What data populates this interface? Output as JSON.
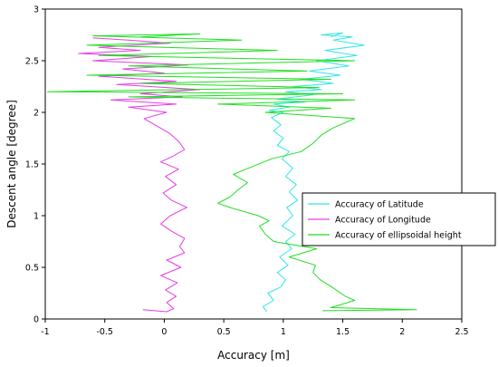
{
  "chart_data": {
    "type": "line",
    "xlabel": "Accuracy [m]",
    "ylabel": "Descent angle [degree]",
    "xlim": [
      -1,
      2.5
    ],
    "ylim": [
      0,
      3
    ],
    "xticks": [
      -1,
      -0.5,
      0,
      0.5,
      1,
      1.5,
      2,
      2.5
    ],
    "xtick_labels": [
      "-1",
      "-0.5",
      "0",
      "0.5",
      "1",
      "1.5",
      "2",
      "2.5"
    ],
    "yticks": [
      0,
      0.5,
      1,
      1.5,
      2,
      2.5,
      3
    ],
    "ytick_labels": [
      "0",
      "0.5",
      "1",
      "1.5",
      "2",
      "2.5",
      "3"
    ],
    "grid": false,
    "legend_position": "center-right",
    "series": [
      {
        "name": "Accuracy of Latitude",
        "color": "#33e6e6",
        "points": [
          [
            0.86,
            0.07
          ],
          [
            0.83,
            0.12
          ],
          [
            0.92,
            0.18
          ],
          [
            0.87,
            0.25
          ],
          [
            0.98,
            0.31
          ],
          [
            1.02,
            0.38
          ],
          [
            0.95,
            0.45
          ],
          [
            1.04,
            0.52
          ],
          [
            0.97,
            0.6
          ],
          [
            1.07,
            0.68
          ],
          [
            1.02,
            0.75
          ],
          [
            1.1,
            0.82
          ],
          [
            0.99,
            0.9
          ],
          [
            1.08,
            1.0
          ],
          [
            1.03,
            1.08
          ],
          [
            1.12,
            1.15
          ],
          [
            1.05,
            1.23
          ],
          [
            1.11,
            1.3
          ],
          [
            1.02,
            1.38
          ],
          [
            1.08,
            1.46
          ],
          [
            0.99,
            1.55
          ],
          [
            1.05,
            1.62
          ],
          [
            0.95,
            1.68
          ],
          [
            1.0,
            1.75
          ],
          [
            0.92,
            1.82
          ],
          [
            0.98,
            1.88
          ],
          [
            0.9,
            1.95
          ],
          [
            1.0,
            2.0
          ],
          [
            0.88,
            2.02
          ],
          [
            1.05,
            2.05
          ],
          [
            0.92,
            2.08
          ],
          [
            1.18,
            2.1
          ],
          [
            0.95,
            2.13
          ],
          [
            1.25,
            2.17
          ],
          [
            1.02,
            2.2
          ],
          [
            1.32,
            2.22
          ],
          [
            1.08,
            2.25
          ],
          [
            1.42,
            2.28
          ],
          [
            1.15,
            2.32
          ],
          [
            1.48,
            2.36
          ],
          [
            1.22,
            2.4
          ],
          [
            1.55,
            2.45
          ],
          [
            1.28,
            2.5
          ],
          [
            1.62,
            2.55
          ],
          [
            1.35,
            2.6
          ],
          [
            1.68,
            2.65
          ],
          [
            1.42,
            2.7
          ],
          [
            1.58,
            2.73
          ],
          [
            1.32,
            2.75
          ],
          [
            1.5,
            2.77
          ],
          [
            1.4,
            2.73
          ]
        ]
      },
      {
        "name": "Accuracy of Longitude",
        "color": "#e63ce6",
        "points": [
          [
            -0.18,
            0.09
          ],
          [
            0.02,
            0.07
          ],
          [
            0.08,
            0.1
          ],
          [
            0.02,
            0.16
          ],
          [
            0.1,
            0.22
          ],
          [
            0.01,
            0.28
          ],
          [
            0.11,
            0.35
          ],
          [
            -0.03,
            0.42
          ],
          [
            0.14,
            0.5
          ],
          [
            0.02,
            0.57
          ],
          [
            0.17,
            0.64
          ],
          [
            0.13,
            0.7
          ],
          [
            0.17,
            0.78
          ],
          [
            0.06,
            0.85
          ],
          [
            -0.03,
            0.92
          ],
          [
            0.05,
            1.0
          ],
          [
            0.19,
            1.08
          ],
          [
            0.06,
            1.15
          ],
          [
            -0.01,
            1.22
          ],
          [
            0.1,
            1.3
          ],
          [
            0.01,
            1.38
          ],
          [
            0.12,
            1.45
          ],
          [
            -0.03,
            1.52
          ],
          [
            0.08,
            1.58
          ],
          [
            0.17,
            1.64
          ],
          [
            0.12,
            1.72
          ],
          [
            0.04,
            1.8
          ],
          [
            -0.08,
            1.88
          ],
          [
            -0.17,
            1.94
          ],
          [
            0.02,
            2.0
          ],
          [
            -0.3,
            2.05
          ],
          [
            0.1,
            2.08
          ],
          [
            -0.45,
            2.12
          ],
          [
            0.15,
            2.15
          ],
          [
            -0.2,
            2.18
          ],
          [
            0.3,
            2.22
          ],
          [
            -0.4,
            2.27
          ],
          [
            0.1,
            2.3
          ],
          [
            -0.55,
            2.35
          ],
          [
            0.0,
            2.38
          ],
          [
            -0.35,
            2.42
          ],
          [
            0.2,
            2.46
          ],
          [
            -0.6,
            2.5
          ],
          [
            -0.1,
            2.54
          ],
          [
            -0.72,
            2.57
          ],
          [
            -0.2,
            2.6
          ],
          [
            -0.55,
            2.63
          ],
          [
            0.05,
            2.67
          ],
          [
            -0.3,
            2.7
          ],
          [
            -0.6,
            2.72
          ]
        ]
      },
      {
        "name": "Accuracy of ellipsoidal height",
        "color": "#22dd22",
        "points": [
          [
            1.33,
            0.08
          ],
          [
            2.12,
            0.09
          ],
          [
            1.4,
            0.11
          ],
          [
            1.6,
            0.18
          ],
          [
            1.52,
            0.22
          ],
          [
            1.42,
            0.3
          ],
          [
            1.31,
            0.38
          ],
          [
            1.25,
            0.45
          ],
          [
            1.27,
            0.52
          ],
          [
            1.05,
            0.6
          ],
          [
            1.28,
            0.68
          ],
          [
            0.92,
            0.75
          ],
          [
            0.85,
            0.82
          ],
          [
            0.8,
            0.9
          ],
          [
            0.88,
            0.95
          ],
          [
            0.79,
            1.0
          ],
          [
            0.55,
            1.08
          ],
          [
            0.45,
            1.12
          ],
          [
            0.55,
            1.18
          ],
          [
            0.62,
            1.25
          ],
          [
            0.7,
            1.32
          ],
          [
            0.58,
            1.4
          ],
          [
            0.75,
            1.48
          ],
          [
            0.9,
            1.55
          ],
          [
            1.15,
            1.62
          ],
          [
            1.25,
            1.7
          ],
          [
            1.32,
            1.78
          ],
          [
            1.42,
            1.85
          ],
          [
            1.6,
            1.94
          ],
          [
            0.85,
            2.0
          ],
          [
            1.4,
            2.04
          ],
          [
            0.45,
            2.08
          ],
          [
            1.6,
            2.12
          ],
          [
            -0.3,
            2.15
          ],
          [
            1.5,
            2.18
          ],
          [
            -0.98,
            2.2
          ],
          [
            1.3,
            2.24
          ],
          [
            -0.2,
            2.28
          ],
          [
            1.4,
            2.32
          ],
          [
            -0.65,
            2.36
          ],
          [
            1.2,
            2.4
          ],
          [
            -0.3,
            2.45
          ],
          [
            1.6,
            2.5
          ],
          [
            -0.55,
            2.55
          ],
          [
            0.95,
            2.6
          ],
          [
            -0.65,
            2.65
          ],
          [
            0.65,
            2.7
          ],
          [
            -0.6,
            2.74
          ],
          [
            0.3,
            2.76
          ],
          [
            -0.2,
            2.73
          ]
        ]
      }
    ]
  }
}
